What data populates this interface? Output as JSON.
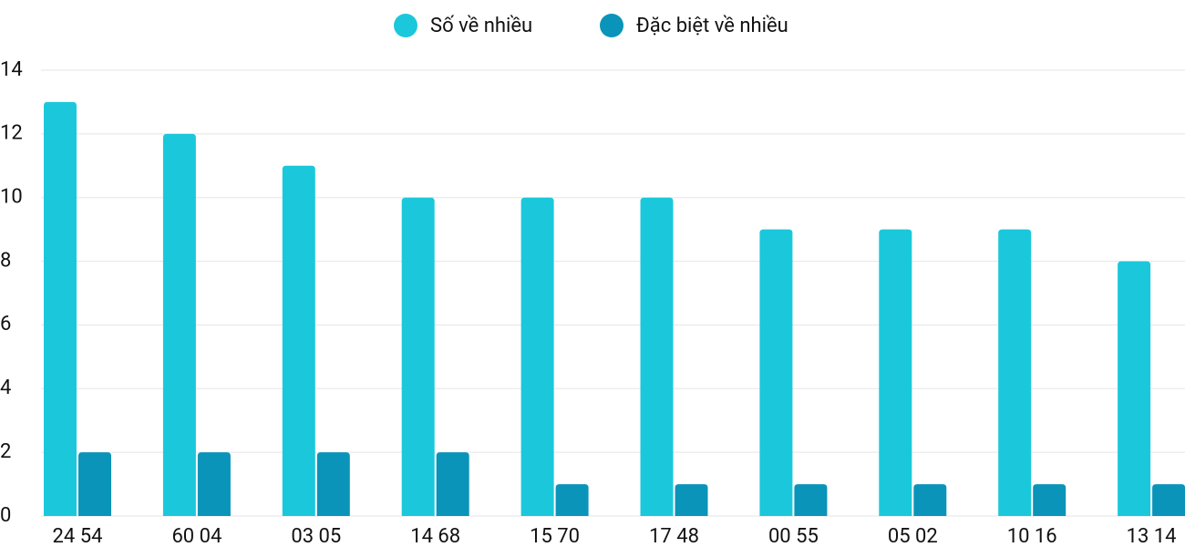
{
  "chart_data": {
    "type": "bar",
    "categories": [
      "24 54",
      "60 04",
      "03 05",
      "14 68",
      "15 70",
      "17 48",
      "00 55",
      "05 02",
      "10 16",
      "13 14"
    ],
    "series": [
      {
        "name": "Số về nhiều",
        "color": "#1bc8db",
        "values": [
          13,
          12,
          11,
          10,
          10,
          10,
          9,
          9,
          9,
          8
        ]
      },
      {
        "name": "Đặc biệt về nhiều",
        "color": "#0a94b9",
        "values": [
          2,
          2,
          2,
          2,
          1,
          1,
          1,
          1,
          1,
          1
        ]
      }
    ],
    "ylim": [
      0,
      14
    ],
    "yticks": [
      0,
      2,
      4,
      6,
      8,
      10,
      12,
      14
    ],
    "grid": true,
    "legend": "top"
  }
}
